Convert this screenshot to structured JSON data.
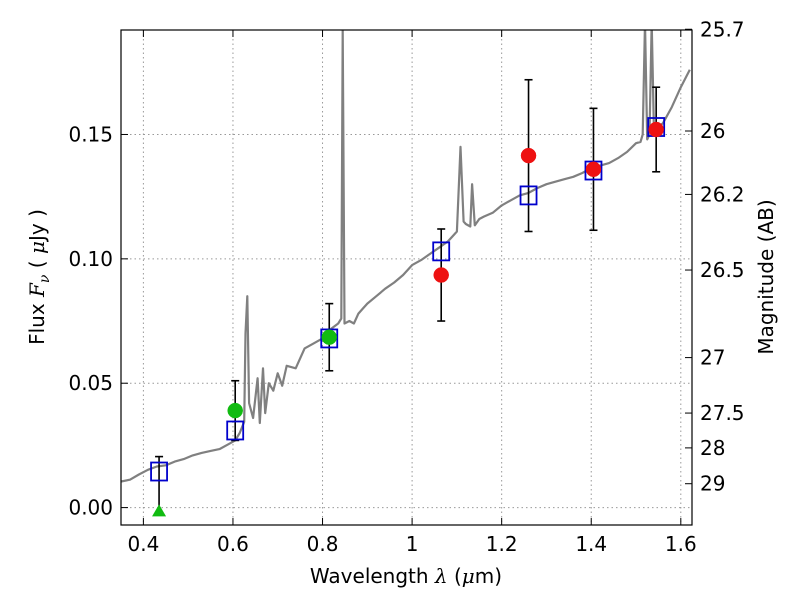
{
  "chart_data": {
    "type": "scatter",
    "xlabel": {
      "prefix": "Wavelength ",
      "symbol": "λ",
      "unit_open": " (",
      "unit_mu": "μ",
      "unit_rest": "m)"
    },
    "ylabel": {
      "prefix": "Flux ",
      "symbol": "F",
      "subscript": "ν",
      "unit_open": " ( ",
      "unit_mu": "μ",
      "unit_rest": "Jy )"
    },
    "y2label": "Magnitude (AB)",
    "xlim": [
      0.35,
      1.625
    ],
    "ylim": [
      -0.007,
      0.192
    ],
    "grid": true,
    "x_ticks": [
      0.4,
      0.6,
      0.8,
      1.0,
      1.2,
      1.4,
      1.6
    ],
    "x_tick_labels": [
      "0.4",
      "0.6",
      "0.8",
      "1",
      "1.2",
      "1.4",
      "1.6"
    ],
    "y_ticks": [
      0.0,
      0.05,
      0.1,
      0.15
    ],
    "y_tick_labels": [
      "0.00",
      "0.05",
      "0.10",
      "0.15"
    ],
    "mag_ticks": [
      {
        "label": "25.7",
        "flux": 0.1923
      },
      {
        "label": "26",
        "flux": 0.1514
      },
      {
        "label": "26.2",
        "flux": 0.1259
      },
      {
        "label": "26.5",
        "flux": 0.0955
      },
      {
        "label": "27",
        "flux": 0.0603
      },
      {
        "label": "27.5",
        "flux": 0.038
      },
      {
        "label": "28",
        "flux": 0.024
      },
      {
        "label": "29",
        "flux": 0.0096
      }
    ],
    "colors": {
      "spectrum": "#808080",
      "model": "#0000cc",
      "observed_red": "#ee1111",
      "observed_green": "#11bb11",
      "errorbar": "#000000",
      "grid": "#999999"
    },
    "series": [
      {
        "role": "spectrum",
        "style": "line",
        "points": [
          [
            0.35,
            0.0105
          ],
          [
            0.37,
            0.0112
          ],
          [
            0.39,
            0.0133
          ],
          [
            0.41,
            0.0152
          ],
          [
            0.43,
            0.0165
          ],
          [
            0.45,
            0.017
          ],
          [
            0.47,
            0.0185
          ],
          [
            0.49,
            0.0195
          ],
          [
            0.51,
            0.021
          ],
          [
            0.53,
            0.022
          ],
          [
            0.55,
            0.0228
          ],
          [
            0.57,
            0.0235
          ],
          [
            0.59,
            0.0255
          ],
          [
            0.605,
            0.027
          ],
          [
            0.615,
            0.03
          ],
          [
            0.625,
            0.0345
          ],
          [
            0.628,
            0.07
          ],
          [
            0.632,
            0.085
          ],
          [
            0.636,
            0.042
          ],
          [
            0.645,
            0.036
          ],
          [
            0.655,
            0.052
          ],
          [
            0.66,
            0.034
          ],
          [
            0.667,
            0.056
          ],
          [
            0.672,
            0.038
          ],
          [
            0.68,
            0.05
          ],
          [
            0.69,
            0.047
          ],
          [
            0.7,
            0.054
          ],
          [
            0.71,
            0.049
          ],
          [
            0.72,
            0.057
          ],
          [
            0.74,
            0.056
          ],
          [
            0.76,
            0.064
          ],
          [
            0.78,
            0.066
          ],
          [
            0.8,
            0.068
          ],
          [
            0.82,
            0.072
          ],
          [
            0.835,
            0.074
          ],
          [
            0.842,
            0.076
          ],
          [
            0.845,
            0.192
          ],
          [
            0.849,
            0.074
          ],
          [
            0.86,
            0.075
          ],
          [
            0.87,
            0.074
          ],
          [
            0.88,
            0.078
          ],
          [
            0.89,
            0.08
          ],
          [
            0.9,
            0.082
          ],
          [
            0.92,
            0.085
          ],
          [
            0.94,
            0.088
          ],
          [
            0.96,
            0.0905
          ],
          [
            0.98,
            0.0935
          ],
          [
            1.0,
            0.0975
          ],
          [
            1.02,
            0.0995
          ],
          [
            1.04,
            0.102
          ],
          [
            1.06,
            0.1045
          ],
          [
            1.08,
            0.107
          ],
          [
            1.09,
            0.109
          ],
          [
            1.1,
            0.111
          ],
          [
            1.108,
            0.145
          ],
          [
            1.115,
            0.115
          ],
          [
            1.12,
            0.114
          ],
          [
            1.13,
            0.113
          ],
          [
            1.134,
            0.13
          ],
          [
            1.14,
            0.1135
          ],
          [
            1.15,
            0.116
          ],
          [
            1.16,
            0.117
          ],
          [
            1.18,
            0.1185
          ],
          [
            1.2,
            0.1215
          ],
          [
            1.22,
            0.1235
          ],
          [
            1.24,
            0.1255
          ],
          [
            1.26,
            0.1265
          ],
          [
            1.28,
            0.1285
          ],
          [
            1.3,
            0.13
          ],
          [
            1.32,
            0.131
          ],
          [
            1.34,
            0.132
          ],
          [
            1.36,
            0.133
          ],
          [
            1.38,
            0.1345
          ],
          [
            1.4,
            0.1365
          ],
          [
            1.42,
            0.1375
          ],
          [
            1.44,
            0.1385
          ],
          [
            1.46,
            0.1405
          ],
          [
            1.48,
            0.143
          ],
          [
            1.5,
            0.1465
          ],
          [
            1.51,
            0.147
          ],
          [
            1.515,
            0.15
          ],
          [
            1.52,
            0.195
          ],
          [
            1.525,
            0.148
          ],
          [
            1.53,
            0.15
          ],
          [
            1.535,
            0.195
          ],
          [
            1.54,
            0.152
          ],
          [
            1.56,
            0.1545
          ],
          [
            1.58,
            0.161
          ],
          [
            1.6,
            0.169
          ],
          [
            1.62,
            0.176
          ]
        ]
      },
      {
        "role": "model_photometry",
        "style": "open-square",
        "points": [
          [
            0.435,
            0.0145
          ],
          [
            0.605,
            0.031
          ],
          [
            0.815,
            0.068
          ],
          [
            1.065,
            0.103
          ],
          [
            1.26,
            0.1255
          ],
          [
            1.405,
            0.1355
          ],
          [
            1.545,
            0.153
          ]
        ]
      },
      {
        "role": "observed_red",
        "style": "filled-circle",
        "points": [
          {
            "x": 1.065,
            "y": 0.0935,
            "err": 0.0185
          },
          {
            "x": 1.26,
            "y": 0.1415,
            "err": 0.0305
          },
          {
            "x": 1.405,
            "y": 0.136,
            "err": 0.0245
          },
          {
            "x": 1.545,
            "y": 0.152,
            "err": 0.017
          }
        ]
      },
      {
        "role": "observed_green",
        "style": "filled-circle",
        "points": [
          {
            "x": 0.605,
            "y": 0.039,
            "err": 0.012
          },
          {
            "x": 0.815,
            "y": 0.0685,
            "err": 0.0135
          }
        ]
      },
      {
        "role": "upper_limit",
        "style": "filled-triangle",
        "points": [
          {
            "x": 0.435,
            "y": -0.0015,
            "top": 0.0205
          }
        ]
      }
    ]
  }
}
